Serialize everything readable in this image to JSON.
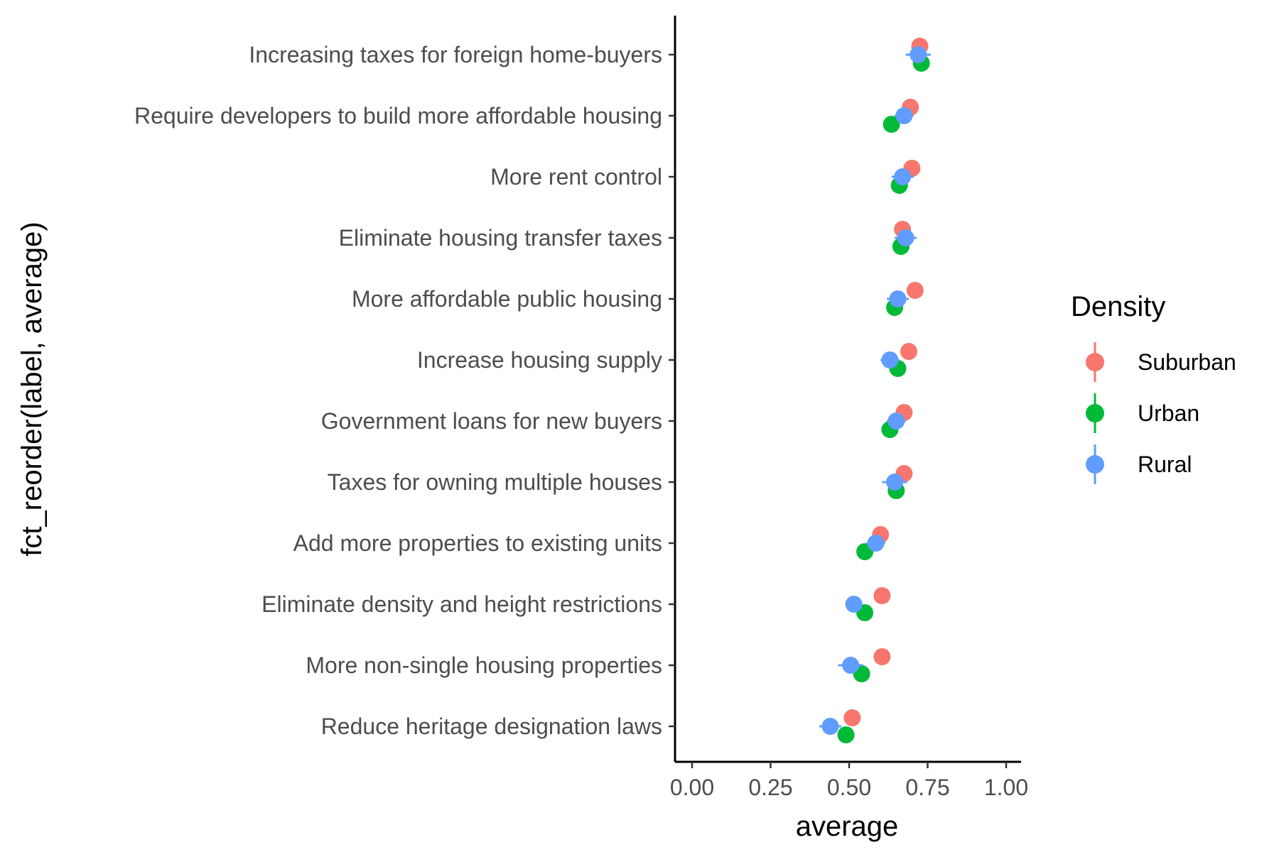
{
  "chart_data": {
    "type": "scatter",
    "title": "",
    "xlabel": "average",
    "ylabel": "fct_reorder(label, average)",
    "xlim": [
      -0.05,
      1.03
    ],
    "x_ticks": [
      0.0,
      0.25,
      0.5,
      0.75,
      1.0
    ],
    "x_tick_labels": [
      "0.00",
      "0.25",
      "0.50",
      "0.75",
      "1.00"
    ],
    "grid": false,
    "legend": {
      "title": "Density",
      "position": "right"
    },
    "categories": [
      "Increasing taxes for foreign home-buyers",
      "Require developers to build more affordable housing",
      "More rent control",
      "Eliminate housing transfer taxes",
      "More affordable public housing",
      "Increase housing supply",
      "Government loans for new buyers",
      "Taxes for owning multiple houses",
      "Add more properties to existing units",
      "Eliminate density and height restrictions",
      "More non-single housing properties",
      "Reduce heritage designation laws"
    ],
    "series": [
      {
        "name": "Suburban",
        "color": "#F8766D",
        "values": [
          0.725,
          0.695,
          0.7,
          0.67,
          0.71,
          0.69,
          0.675,
          0.675,
          0.6,
          0.605,
          0.605,
          0.51
        ],
        "errors": [
          0.015,
          0.012,
          0.012,
          0.012,
          0.012,
          0.012,
          0.012,
          0.012,
          0.012,
          0.012,
          0.012,
          0.012
        ]
      },
      {
        "name": "Urban",
        "color": "#00BA38",
        "values": [
          0.73,
          0.635,
          0.66,
          0.665,
          0.645,
          0.655,
          0.63,
          0.65,
          0.55,
          0.55,
          0.54,
          0.49
        ],
        "errors": [
          0.01,
          0.01,
          0.01,
          0.01,
          0.01,
          0.01,
          0.01,
          0.01,
          0.01,
          0.01,
          0.01,
          0.01
        ]
      },
      {
        "name": "Rural",
        "color": "#619CFF",
        "values": [
          0.72,
          0.675,
          0.67,
          0.68,
          0.655,
          0.63,
          0.65,
          0.645,
          0.585,
          0.515,
          0.505,
          0.44
        ],
        "errors": [
          0.04,
          0.03,
          0.035,
          0.035,
          0.035,
          0.03,
          0.03,
          0.04,
          0.03,
          0.025,
          0.04,
          0.035
        ]
      }
    ]
  }
}
